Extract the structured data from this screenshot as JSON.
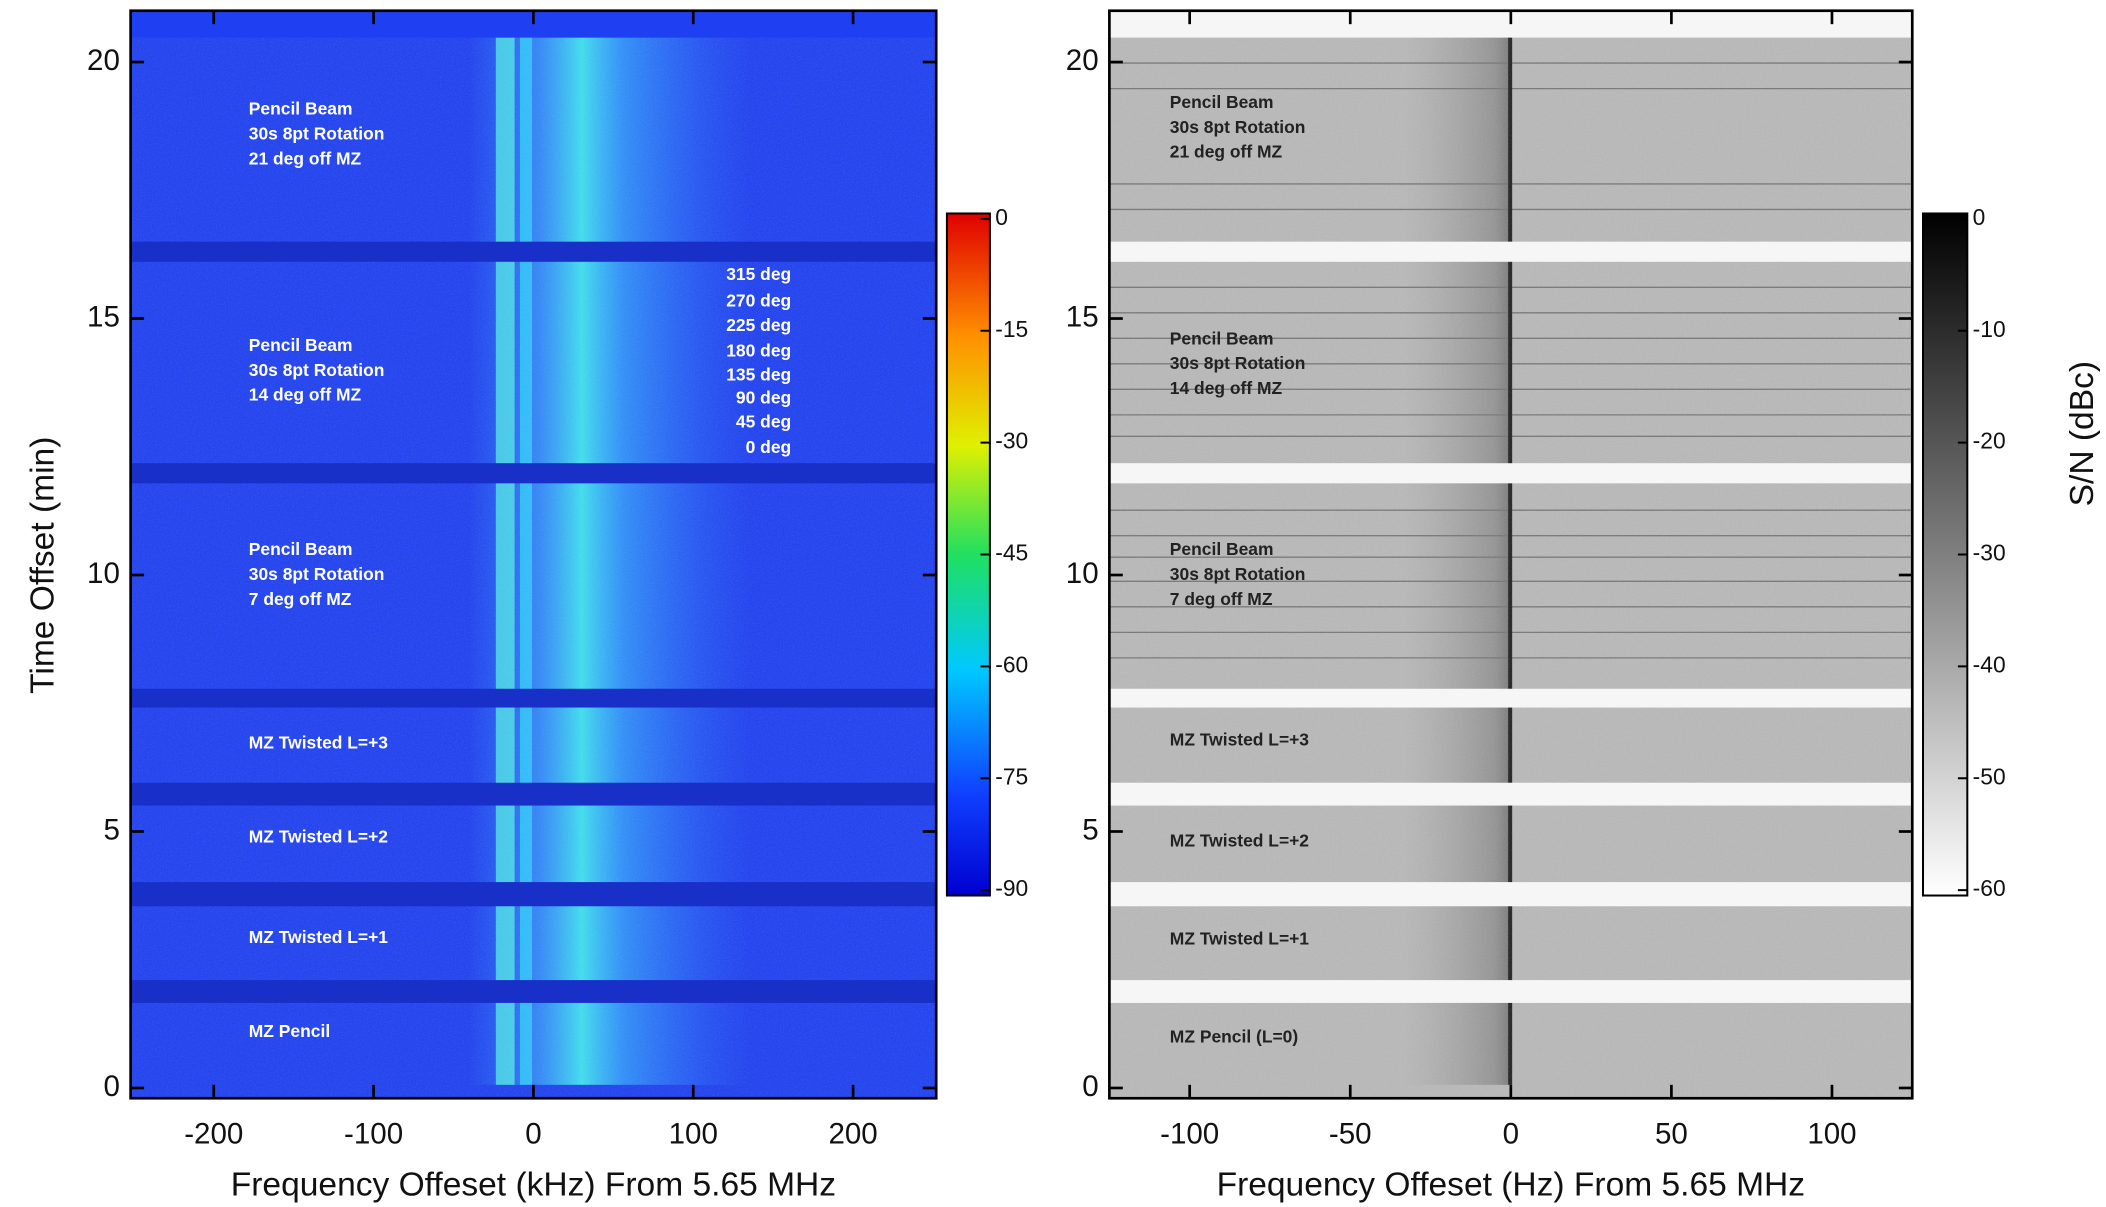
{
  "chart_data": [
    {
      "type": "spectrogram",
      "x_label": "Frequency Offeset (kHz) From 5.65 MHz",
      "y_label": "Time Offset (min)",
      "xlim": [
        -252,
        252
      ],
      "xticks": [
        -200,
        -100,
        0,
        100,
        200
      ],
      "ylim": [
        -0.2,
        21
      ],
      "yticks": [
        0,
        5,
        10,
        15,
        20
      ],
      "colormap": "jet",
      "clim": [
        -90,
        0
      ],
      "cticks": [
        0,
        -15,
        -30,
        -45,
        -60,
        -75,
        -90
      ],
      "annotations": [
        [
          "Pencil Beam",
          "30s 8pt Rotation",
          "21 deg off MZ"
        ],
        [
          "Pencil Beam",
          "30s 8pt Rotation",
          "14 deg off MZ"
        ],
        [
          "Pencil Beam",
          "30s 8pt Rotation",
          "7 deg off MZ"
        ],
        [
          "MZ Twisted L=+3"
        ],
        [
          "MZ Twisted L=+2"
        ],
        [
          "MZ Twisted L=+1"
        ],
        [
          "MZ Pencil"
        ]
      ],
      "angle_labels": [
        "315 deg",
        "270 deg",
        "225 deg",
        "180 deg",
        "135 deg",
        "90 deg",
        "45 deg",
        "0 deg"
      ]
    },
    {
      "type": "spectrogram",
      "x_label": "Frequency Offeset (Hz) From 5.65 MHz",
      "xlim": [
        -125,
        125
      ],
      "xticks": [
        -100,
        -50,
        0,
        50,
        100
      ],
      "ylim": [
        -0.2,
        21
      ],
      "yticks": [
        0,
        5,
        10,
        15,
        20
      ],
      "colormap": "gray",
      "clim": [
        -60,
        0
      ],
      "cticks": [
        0,
        -10,
        -20,
        -30,
        -40,
        -50,
        -60
      ],
      "colorbar_label": "S/N (dBc)",
      "annotations": [
        [
          "Pencil Beam",
          "30s 8pt Rotation",
          "21 deg off MZ"
        ],
        [
          "Pencil Beam",
          "30s 8pt Rotation",
          "14 deg off MZ"
        ],
        [
          "Pencil Beam",
          "30s 8pt Rotation",
          "7 deg off MZ"
        ],
        [
          "MZ Twisted L=+3"
        ],
        [
          "MZ Twisted L=+2"
        ],
        [
          "MZ Twisted L=+1"
        ],
        [
          "MZ Pencil (L=0)"
        ]
      ]
    }
  ]
}
